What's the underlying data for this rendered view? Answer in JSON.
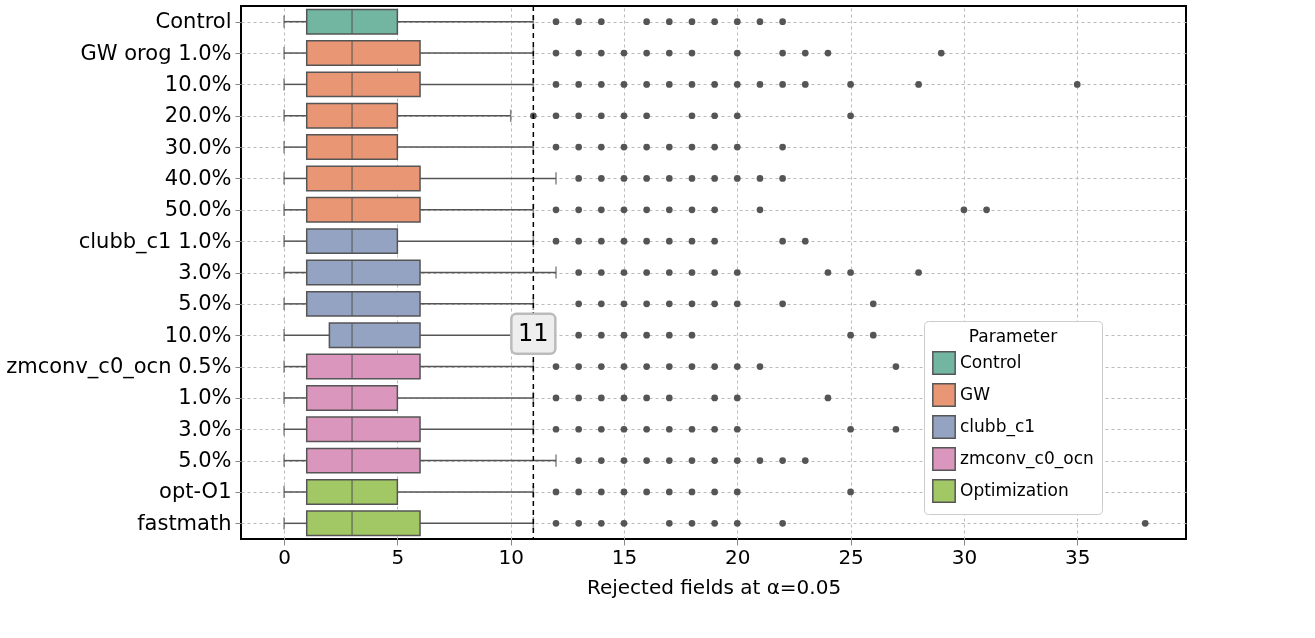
{
  "chart_data": {
    "type": "box",
    "categories": [
      "Control",
      "GW orog 1.0%",
      "10.0%",
      "20.0%",
      "30.0%",
      "40.0%",
      "50.0%",
      "clubb_c1 1.0%",
      "3.0%",
      "5.0%",
      "10.0%",
      "zmconv_c0_ocn 0.5%",
      "1.0%",
      "3.0%",
      "5.0%",
      "opt-O1",
      "fastmath"
    ],
    "series": [
      {
        "name": "Control",
        "color": "#72b6a1",
        "boxes": [
          {
            "low": 0,
            "q1": 1,
            "median": 3,
            "q3": 5,
            "high": 11,
            "outliers": [
              12,
              13,
              14,
              16,
              17,
              18,
              19,
              20,
              21,
              22
            ]
          },
          null,
          null,
          null,
          null,
          null,
          null,
          null,
          null,
          null,
          null,
          null,
          null,
          null,
          null,
          null,
          null
        ]
      },
      {
        "name": "GW",
        "color": "#e99675",
        "boxes": [
          null,
          {
            "low": 0,
            "q1": 1,
            "median": 3,
            "q3": 6,
            "high": 11,
            "outliers": [
              12,
              13,
              14,
              15,
              16,
              17,
              18,
              20,
              22,
              23,
              24,
              29
            ]
          },
          {
            "low": 0,
            "q1": 1,
            "median": 3,
            "q3": 6,
            "high": 11,
            "outliers": [
              12,
              13,
              14,
              15,
              16,
              17,
              18,
              19,
              20,
              21,
              22,
              23,
              25,
              28,
              35
            ]
          },
          {
            "low": 0,
            "q1": 1,
            "median": 3,
            "q3": 5,
            "high": 10,
            "outliers": [
              11,
              12,
              13,
              14,
              15,
              16,
              18,
              19,
              20,
              25
            ]
          },
          {
            "low": 0,
            "q1": 1,
            "median": 3,
            "q3": 5,
            "high": 11,
            "outliers": [
              12,
              13,
              14,
              15,
              16,
              17,
              18,
              19,
              20,
              22
            ]
          },
          {
            "low": 0,
            "q1": 1,
            "median": 3,
            "q3": 6,
            "high": 12,
            "outliers": [
              13,
              14,
              15,
              16,
              17,
              18,
              19,
              20,
              21,
              22
            ]
          },
          {
            "low": 0,
            "q1": 1,
            "median": 3,
            "q3": 6,
            "high": 11,
            "outliers": [
              12,
              13,
              14,
              15,
              16,
              17,
              18,
              19,
              21,
              30,
              31
            ]
          },
          null,
          null,
          null,
          null,
          null,
          null,
          null,
          null,
          null,
          null
        ]
      },
      {
        "name": "clubb_c1",
        "color": "#95a3c3",
        "boxes": [
          null,
          null,
          null,
          null,
          null,
          null,
          null,
          {
            "low": 0,
            "q1": 1,
            "median": 3,
            "q3": 5,
            "high": 11,
            "outliers": [
              12,
              13,
              14,
              15,
              16,
              17,
              18,
              19,
              22,
              23
            ]
          },
          {
            "low": 0,
            "q1": 1,
            "median": 3,
            "q3": 6,
            "high": 12,
            "outliers": [
              13,
              14,
              15,
              16,
              17,
              18,
              19,
              20,
              24,
              25,
              28
            ]
          },
          {
            "low": 0,
            "q1": 1,
            "median": 3,
            "q3": 6,
            "high": 11,
            "outliers": [
              13,
              14,
              15,
              16,
              17,
              18,
              19,
              20,
              22,
              26
            ]
          },
          {
            "low": 0,
            "q1": 2,
            "median": 3,
            "q3": 6,
            "high": 11,
            "outliers": [
              13,
              14,
              15,
              16,
              17,
              18,
              25,
              26
            ]
          },
          null,
          null,
          null,
          null,
          null,
          null
        ]
      },
      {
        "name": "zmconv_c0_ocn",
        "color": "#db96be",
        "boxes": [
          null,
          null,
          null,
          null,
          null,
          null,
          null,
          null,
          null,
          null,
          null,
          {
            "low": 0,
            "q1": 1,
            "median": 3,
            "q3": 6,
            "high": 11,
            "outliers": [
              12,
              13,
              14,
              15,
              16,
              17,
              18,
              19,
              20,
              21,
              27
            ]
          },
          {
            "low": 0,
            "q1": 1,
            "median": 3,
            "q3": 5,
            "high": 11,
            "outliers": [
              12,
              13,
              14,
              15,
              16,
              17,
              19,
              20,
              24
            ]
          },
          {
            "low": 0,
            "q1": 1,
            "median": 3,
            "q3": 6,
            "high": 11,
            "outliers": [
              12,
              13,
              14,
              15,
              16,
              17,
              18,
              19,
              20,
              25,
              27
            ]
          },
          {
            "low": 0,
            "q1": 1,
            "median": 3,
            "q3": 6,
            "high": 12,
            "outliers": [
              13,
              14,
              15,
              16,
              17,
              18,
              19,
              20,
              21,
              22,
              23
            ]
          },
          null,
          null
        ]
      },
      {
        "name": "Optimization",
        "color": "#a2c865",
        "boxes": [
          null,
          null,
          null,
          null,
          null,
          null,
          null,
          null,
          null,
          null,
          null,
          null,
          null,
          null,
          null,
          {
            "low": 0,
            "q1": 1,
            "median": 3,
            "q3": 5,
            "high": 11,
            "outliers": [
              12,
              13,
              14,
              15,
              16,
              17,
              18,
              19,
              20,
              25
            ]
          },
          {
            "low": 0,
            "q1": 1,
            "median": 3,
            "q3": 6,
            "high": 11,
            "outliers": [
              12,
              13,
              14,
              15,
              17,
              18,
              19,
              20,
              22,
              38
            ]
          }
        ]
      }
    ],
    "orientation": "horizontal",
    "xlabel": "Rejected fields at α=0.05",
    "legend_title": "Parameter",
    "legend": "bottom right",
    "xlim": [
      -1.9,
      39.8
    ],
    "xticks": [
      0,
      5,
      10,
      15,
      20,
      25,
      30,
      35
    ],
    "grid": true,
    "ref_lines": [
      {
        "axis": "x",
        "value": 11,
        "label": "11",
        "color": "#000000",
        "line_style": "dashed"
      }
    ]
  }
}
